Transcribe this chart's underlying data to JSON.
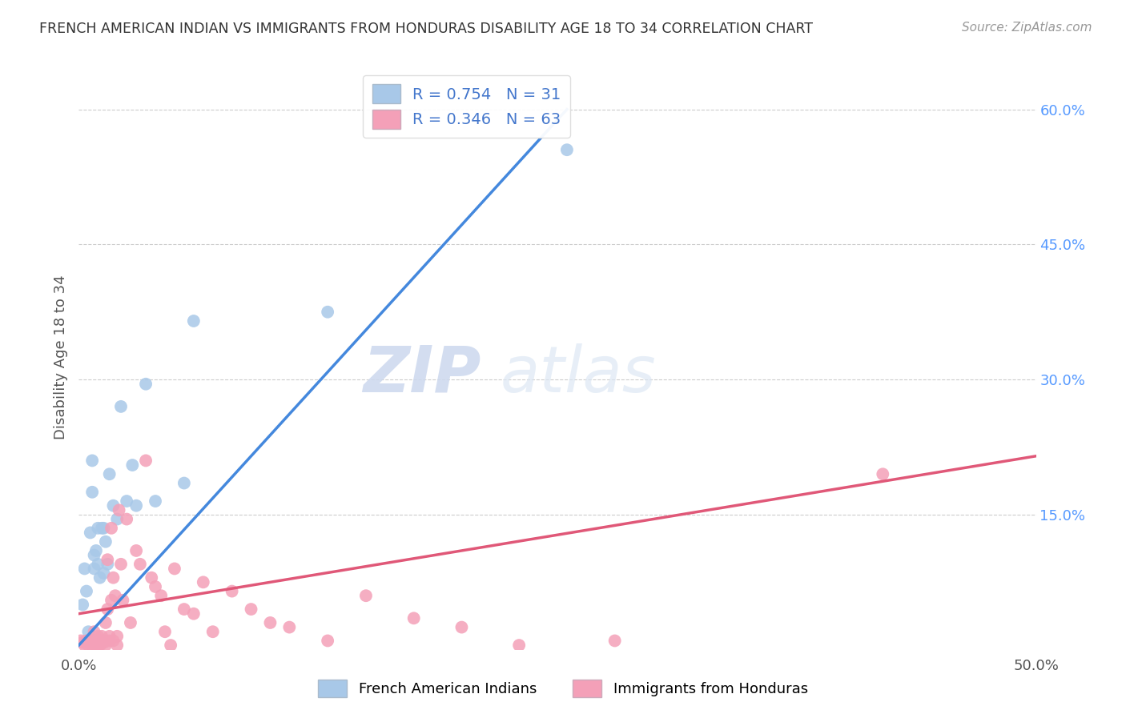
{
  "title": "FRENCH AMERICAN INDIAN VS IMMIGRANTS FROM HONDURAS DISABILITY AGE 18 TO 34 CORRELATION CHART",
  "source": "Source: ZipAtlas.com",
  "ylabel": "Disability Age 18 to 34",
  "watermark_zip": "ZIP",
  "watermark_atlas": "atlas",
  "xlim": [
    0.0,
    0.5
  ],
  "ylim": [
    0.0,
    0.65
  ],
  "blue_R": 0.754,
  "blue_N": 31,
  "pink_R": 0.346,
  "pink_N": 63,
  "blue_color": "#a8c8e8",
  "pink_color": "#f4a0b8",
  "blue_line_color": "#4488dd",
  "pink_line_color": "#e05878",
  "legend_label_blue": "French American Indians",
  "legend_label_pink": "Immigrants from Honduras",
  "blue_line_x0": 0.0,
  "blue_line_y0": 0.005,
  "blue_line_x1": 0.255,
  "blue_line_y1": 0.6,
  "pink_line_x0": 0.0,
  "pink_line_y0": 0.04,
  "pink_line_x1": 0.5,
  "pink_line_y1": 0.215,
  "blue_scatter_x": [
    0.002,
    0.003,
    0.004,
    0.005,
    0.006,
    0.007,
    0.007,
    0.008,
    0.008,
    0.009,
    0.01,
    0.01,
    0.011,
    0.012,
    0.013,
    0.013,
    0.014,
    0.015,
    0.016,
    0.018,
    0.02,
    0.022,
    0.025,
    0.028,
    0.03,
    0.035,
    0.04,
    0.055,
    0.06,
    0.13,
    0.255
  ],
  "blue_scatter_y": [
    0.05,
    0.09,
    0.065,
    0.02,
    0.13,
    0.175,
    0.21,
    0.105,
    0.09,
    0.11,
    0.095,
    0.135,
    0.08,
    0.135,
    0.085,
    0.135,
    0.12,
    0.095,
    0.195,
    0.16,
    0.145,
    0.27,
    0.165,
    0.205,
    0.16,
    0.295,
    0.165,
    0.185,
    0.365,
    0.375,
    0.555
  ],
  "pink_scatter_x": [
    0.001,
    0.002,
    0.003,
    0.004,
    0.005,
    0.005,
    0.006,
    0.007,
    0.007,
    0.008,
    0.008,
    0.009,
    0.009,
    0.01,
    0.01,
    0.011,
    0.011,
    0.012,
    0.012,
    0.013,
    0.013,
    0.014,
    0.014,
    0.015,
    0.015,
    0.016,
    0.016,
    0.017,
    0.017,
    0.018,
    0.018,
    0.019,
    0.02,
    0.02,
    0.021,
    0.022,
    0.023,
    0.025,
    0.027,
    0.03,
    0.032,
    0.035,
    0.038,
    0.04,
    0.043,
    0.045,
    0.048,
    0.05,
    0.055,
    0.06,
    0.065,
    0.07,
    0.08,
    0.09,
    0.1,
    0.11,
    0.13,
    0.15,
    0.175,
    0.2,
    0.23,
    0.28,
    0.42
  ],
  "pink_scatter_y": [
    0.01,
    0.008,
    0.005,
    0.01,
    0.01,
    0.005,
    0.008,
    0.005,
    0.01,
    0.01,
    0.02,
    0.005,
    0.01,
    0.005,
    0.015,
    0.01,
    0.005,
    0.01,
    0.015,
    0.01,
    0.008,
    0.03,
    0.005,
    0.045,
    0.1,
    0.01,
    0.015,
    0.055,
    0.135,
    0.08,
    0.01,
    0.06,
    0.015,
    0.005,
    0.155,
    0.095,
    0.055,
    0.145,
    0.03,
    0.11,
    0.095,
    0.21,
    0.08,
    0.07,
    0.06,
    0.02,
    0.005,
    0.09,
    0.045,
    0.04,
    0.075,
    0.02,
    0.065,
    0.045,
    0.03,
    0.025,
    0.01,
    0.06,
    0.035,
    0.025,
    0.005,
    0.01,
    0.195
  ]
}
